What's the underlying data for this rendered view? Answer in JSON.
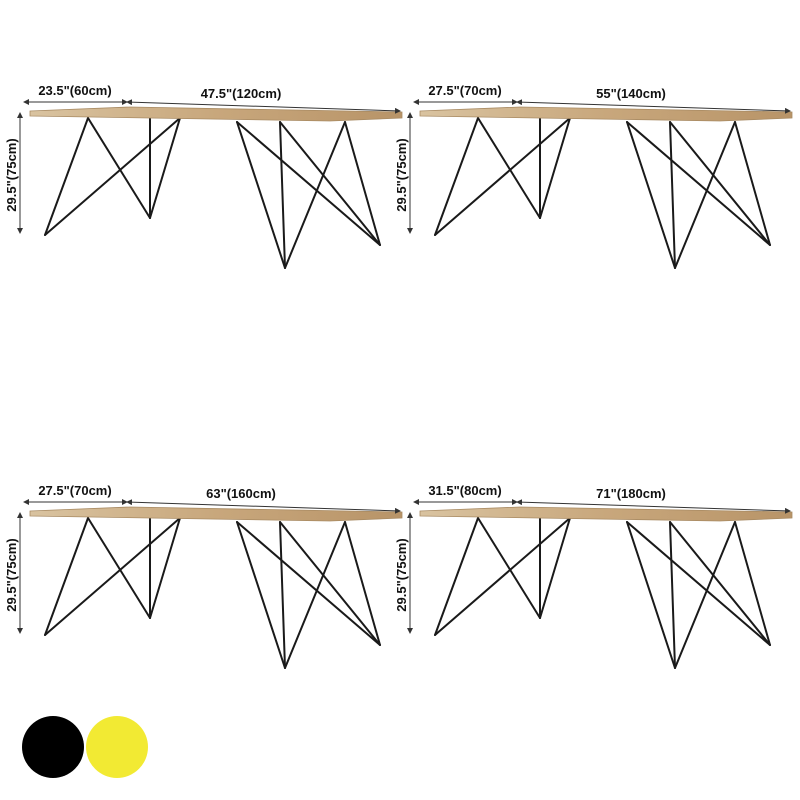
{
  "tables": [
    {
      "depth": "23.5\"(60cm)",
      "length": "47.5\"(120cm)",
      "height": "29.5\"(75cm)"
    },
    {
      "depth": "27.5\"(70cm)",
      "length": "55\"(140cm)",
      "height": "29.5\"(75cm)"
    },
    {
      "depth": "27.5\"(70cm)",
      "length": "63\"(160cm)",
      "height": "29.5\"(75cm)"
    },
    {
      "depth": "31.5\"(80cm)",
      "length": "71\"(180cm)",
      "height": "29.5\"(75cm)"
    }
  ]
}
